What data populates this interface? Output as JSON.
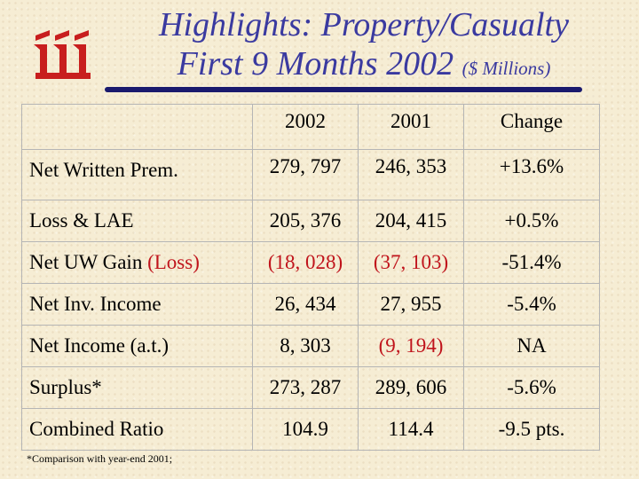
{
  "title": {
    "line1": "Highlights: Property/Casualty",
    "line2_main": "First 9 Months 2002",
    "line2_units": "($ Millions)"
  },
  "colors": {
    "title": "#3a3aa0",
    "accent_red": "#c0141c",
    "logo_red": "#c81e1e"
  },
  "logo": {
    "icon": "iii-logo-icon"
  },
  "table": {
    "headers": {
      "label": "",
      "col1": "2002",
      "col2": "2001",
      "col3": "Change"
    },
    "rows": [
      {
        "label": "Net Written Prem.",
        "col1": "279, 797",
        "col2": "246, 353",
        "col3": "+13.6%"
      },
      {
        "label": "Loss & LAE",
        "col1": "205, 376",
        "col2": "204, 415",
        "col3": "+0.5%"
      },
      {
        "label": "Net UW Gain ",
        "label_red": "(Loss)",
        "col1": "(18, 028)",
        "col2": "(37, 103)",
        "col3": "-51.4%"
      },
      {
        "label": "Net Inv. Income",
        "col1": "26, 434",
        "col2": "27, 955",
        "col3": "-5.4%"
      },
      {
        "label": "Net Income (a.t.)",
        "col1": "8, 303",
        "col2": "(9, 194)",
        "col3": "NA"
      },
      {
        "label": "Surplus*",
        "col1": "273, 287",
        "col2": "289, 606",
        "col3": "-5.6%"
      },
      {
        "label": "Combined Ratio",
        "col1": "104.9",
        "col2": "114.4",
        "col3": "-9.5 pts."
      }
    ]
  },
  "footnote": "*Comparison with year-end 2001;"
}
